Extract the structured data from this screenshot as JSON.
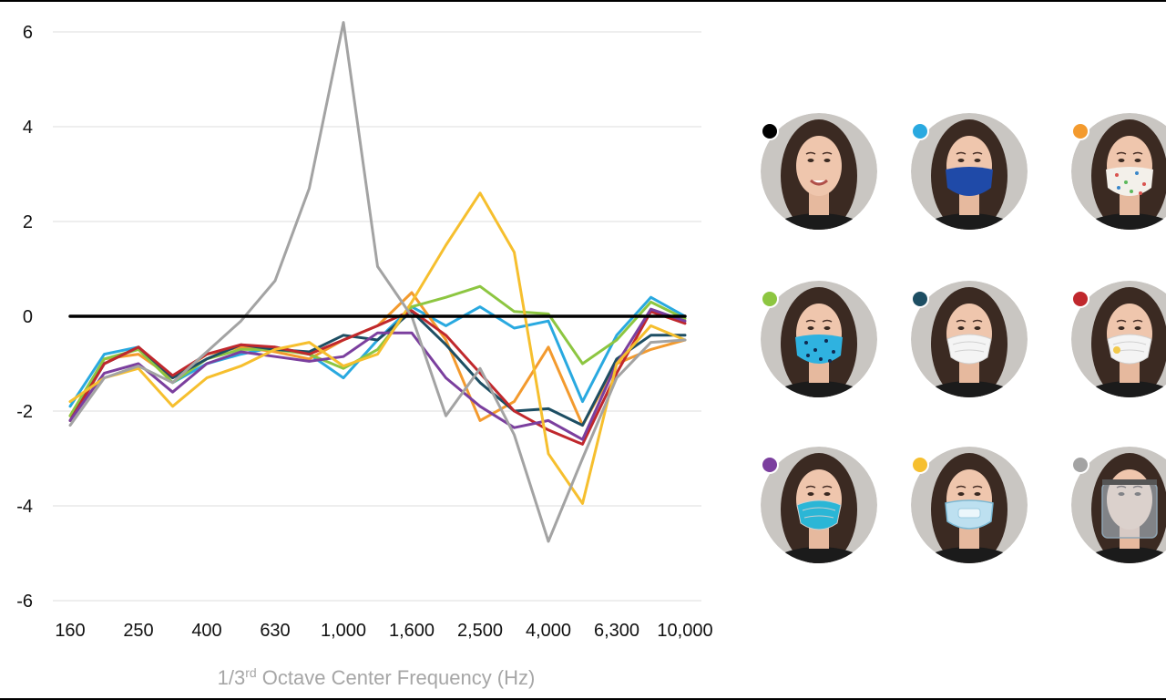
{
  "chart_data": {
    "type": "line",
    "xlabel_parts": [
      "1/3",
      "rd",
      " Octave Center Frequency (Hz)"
    ],
    "ylim": [
      -6,
      6
    ],
    "grid": true,
    "yticks": [
      6,
      4,
      2,
      0,
      -2,
      -4,
      -6
    ],
    "x": [
      "160",
      "200",
      "250",
      "315",
      "400",
      "500",
      "630",
      "800",
      "1,000",
      "1,250",
      "1,600",
      "2,000",
      "2,500",
      "3,150",
      "4,000",
      "5,000",
      "6,300",
      "8,000",
      "10,000"
    ],
    "xtick_labels": [
      "160",
      "250",
      "400",
      "630",
      "1,000",
      "1,600",
      "2,500",
      "4,000",
      "6,300",
      "10,000"
    ],
    "xtick_indices": [
      0,
      2,
      4,
      6,
      8,
      10,
      12,
      14,
      16,
      18
    ],
    "series": [
      {
        "color": "#000000",
        "values": [
          0,
          0,
          0,
          0,
          0,
          0,
          0,
          0,
          0,
          0,
          0,
          0,
          0,
          0,
          0,
          0,
          0,
          0,
          0
        ]
      },
      {
        "color": "#29a9e0",
        "values": [
          -1.9,
          -0.8,
          -0.65,
          -1.4,
          -1.0,
          -0.8,
          -0.65,
          -0.8,
          -1.3,
          -0.5,
          0.2,
          -0.2,
          0.2,
          -0.25,
          -0.1,
          -1.8,
          -0.4,
          0.4,
          0.0
        ]
      },
      {
        "color": "#f39a2e",
        "values": [
          -2.1,
          -0.9,
          -0.8,
          -1.3,
          -0.8,
          -0.65,
          -0.75,
          -0.9,
          -0.5,
          -0.2,
          0.5,
          -0.5,
          -2.2,
          -1.8,
          -0.65,
          -2.3,
          -1.0,
          -0.7,
          -0.5
        ]
      },
      {
        "color": "#8dc641",
        "values": [
          -2.1,
          -0.9,
          -0.7,
          -1.4,
          -0.9,
          -0.7,
          -0.7,
          -0.8,
          -1.1,
          -0.7,
          0.2,
          0.4,
          0.63,
          0.1,
          0.05,
          -1.0,
          -0.5,
          0.3,
          -0.05
        ]
      },
      {
        "color": "#1d4e63",
        "values": [
          -2.2,
          -1.0,
          -0.65,
          -1.3,
          -0.9,
          -0.6,
          -0.7,
          -0.75,
          -0.4,
          -0.5,
          0.1,
          -0.6,
          -1.4,
          -2.0,
          -1.95,
          -2.3,
          -0.9,
          -0.4,
          -0.4
        ]
      },
      {
        "color": "#c0282d",
        "values": [
          -2.2,
          -1.0,
          -0.65,
          -1.25,
          -0.8,
          -0.6,
          -0.65,
          -0.8,
          -0.5,
          -0.2,
          0.12,
          -0.4,
          -1.2,
          -2.0,
          -2.4,
          -2.7,
          -1.2,
          0.1,
          -0.15
        ]
      },
      {
        "color": "#7b3f9e",
        "values": [
          -2.2,
          -1.2,
          -1.0,
          -1.6,
          -1.0,
          -0.75,
          -0.85,
          -0.95,
          -0.85,
          -0.35,
          -0.35,
          -1.3,
          -1.9,
          -2.35,
          -2.2,
          -2.6,
          -1.0,
          0.15,
          -0.1
        ]
      },
      {
        "color": "#f6bf2e",
        "values": [
          -1.8,
          -1.3,
          -1.1,
          -1.9,
          -1.3,
          -1.05,
          -0.7,
          -0.55,
          -1.05,
          -0.8,
          0.3,
          1.5,
          2.6,
          1.35,
          -2.9,
          -3.95,
          -1.0,
          -0.2,
          -0.5
        ]
      },
      {
        "color": "#a3a3a3",
        "values": [
          -2.3,
          -1.3,
          -1.05,
          -1.4,
          -0.75,
          -0.1,
          0.75,
          2.7,
          6.2,
          1.05,
          0.0,
          -2.1,
          -1.1,
          -2.5,
          -4.75,
          -3.0,
          -1.3,
          -0.55,
          -0.5
        ]
      }
    ],
    "legend": {
      "placement": "right",
      "entries": [
        {
          "color": "#000000",
          "icon": "face-no-mask-icon"
        },
        {
          "color": "#29a9e0",
          "icon": "face-navy-cloth-mask-icon"
        },
        {
          "color": "#f39a2e",
          "icon": "face-floral-cloth-mask-icon"
        },
        {
          "color": "#8dc641",
          "icon": "face-patterned-cloth-mask-icon"
        },
        {
          "color": "#1d4e63",
          "icon": "face-n95-respirator-icon"
        },
        {
          "color": "#c0282d",
          "icon": "face-valved-n95-respirator-icon"
        },
        {
          "color": "#7b3f9e",
          "icon": "face-surgical-n95-mask-icon"
        },
        {
          "color": "#f6bf2e",
          "icon": "face-clear-window-mask-icon"
        },
        {
          "color": "#a3a3a3",
          "icon": "face-shield-icon"
        }
      ]
    }
  }
}
